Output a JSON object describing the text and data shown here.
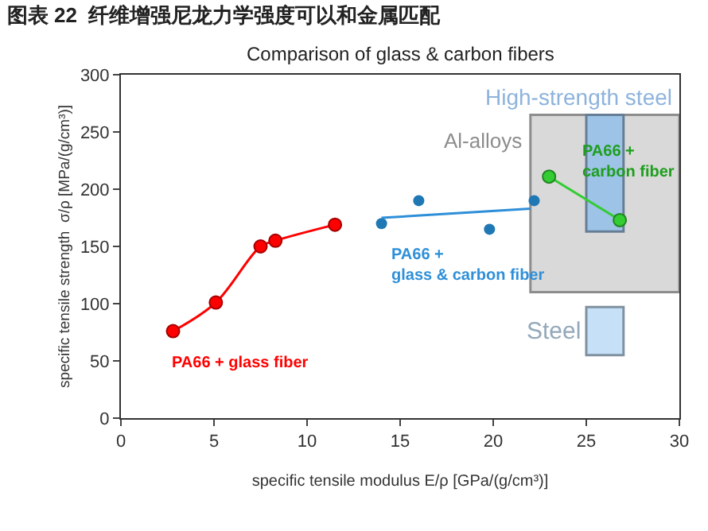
{
  "chart_data": {
    "type": "scatter",
    "title": "图表 22  纤维增强尼龙力学强度可以和金属匹配",
    "subtitle": "Comparison of glass & carbon fibers",
    "xlabel": "specific tensile modulus E/ρ [GPa/(g/cm³)]",
    "ylabel": "specific tensile strength  σ/ρ [MPa/(g/cm³)]",
    "xlim": [
      0,
      30
    ],
    "xticks": [
      0,
      5,
      10,
      15,
      20,
      25,
      30
    ],
    "ylim": [
      0,
      300
    ],
    "yticks": [
      0,
      50,
      100,
      150,
      200,
      250,
      300
    ],
    "legend": false,
    "series": [
      {
        "type": "bar",
        "name": "Al-alloys",
        "color": "#d9d9d9",
        "x": [
          26
        ],
        "base": [
          110
        ],
        "values": [
          155
        ]
      },
      {
        "type": "bar",
        "name": "High-strength steel",
        "color": "#9dc3e6",
        "x": [
          26
        ],
        "base": [
          163
        ],
        "values": [
          102
        ]
      },
      {
        "type": "bar",
        "name": "Steel",
        "color": "#c5e0f7",
        "x": [
          26
        ],
        "base": [
          55
        ],
        "values": [
          42
        ]
      },
      {
        "type": "line",
        "name": "PA66 + glass fiber",
        "color": "#ff0000",
        "marker": "circle",
        "x": [
          2.8,
          5.1,
          7.5,
          8.3,
          11.5
        ],
        "values": [
          76,
          101,
          150,
          155,
          169
        ]
      },
      {
        "name": "PA66 +\nglass & carbon fiber",
        "color": "#1f77b4",
        "marker": "circle",
        "x": [
          14,
          16,
          19.8,
          22.2
        ],
        "values": [
          170,
          190,
          165,
          190
        ]
      },
      {
        "type": "line",
        "color": "#2e8fd8",
        "marker": "none",
        "x": [
          14,
          22
        ],
        "values": [
          175,
          183
        ]
      },
      {
        "type": "line",
        "name": "PA66 +\ncarbon fiber",
        "color": "#33cc33",
        "marker": "circle",
        "x": [
          23,
          26.8
        ],
        "values": [
          211,
          173
        ]
      }
    ]
  }
}
